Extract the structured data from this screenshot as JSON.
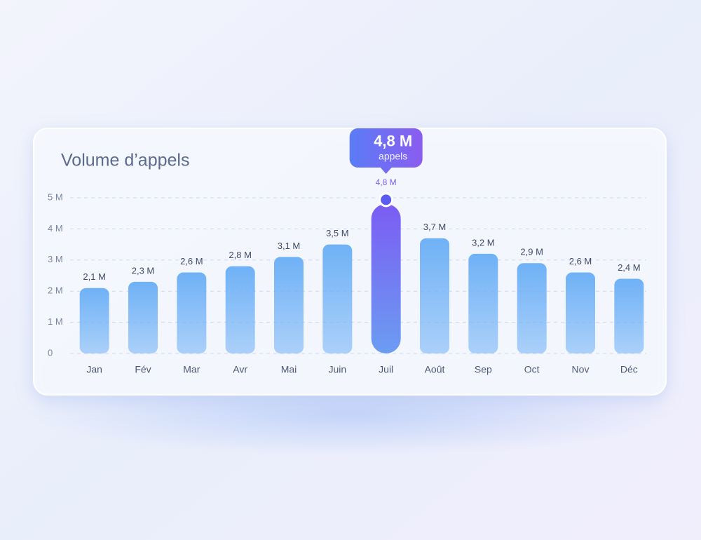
{
  "chart_data": {
    "type": "bar",
    "title": "Volume d’appels",
    "categories": [
      "Jan",
      "Fév",
      "Mar",
      "Avr",
      "Mai",
      "Juin",
      "Juil",
      "Août",
      "Sep",
      "Oct",
      "Nov",
      "Déc"
    ],
    "values": [
      2.1,
      2.3,
      2.6,
      2.8,
      3.1,
      3.5,
      4.8,
      3.7,
      3.2,
      2.9,
      2.6,
      2.4
    ],
    "value_labels": [
      "2,1 M",
      "2,3 M",
      "2,6 M",
      "2,8 M",
      "3,1 M",
      "3,5 M",
      "4,8 M",
      "3,7 M",
      "3,2 M",
      "2,9 M",
      "2,6 M",
      "2,4 M"
    ],
    "color": "#6fb1f6",
    "highlight_color": "#7b5cf3",
    "highlight_index": 6,
    "tooltip": {
      "caption": "appels"
    },
    "ylim": [
      0,
      5
    ],
    "yticks": [
      0,
      {
        "value": 1,
        "label": "1 M"
      },
      {
        "value": 2,
        "label": "2 M"
      },
      {
        "value": 3,
        "label": "3 M"
      },
      {
        "value": 4,
        "label": "4 M"
      },
      {
        "value": 5,
        "label": "5 M"
      }
    ],
    "grid": true
  }
}
